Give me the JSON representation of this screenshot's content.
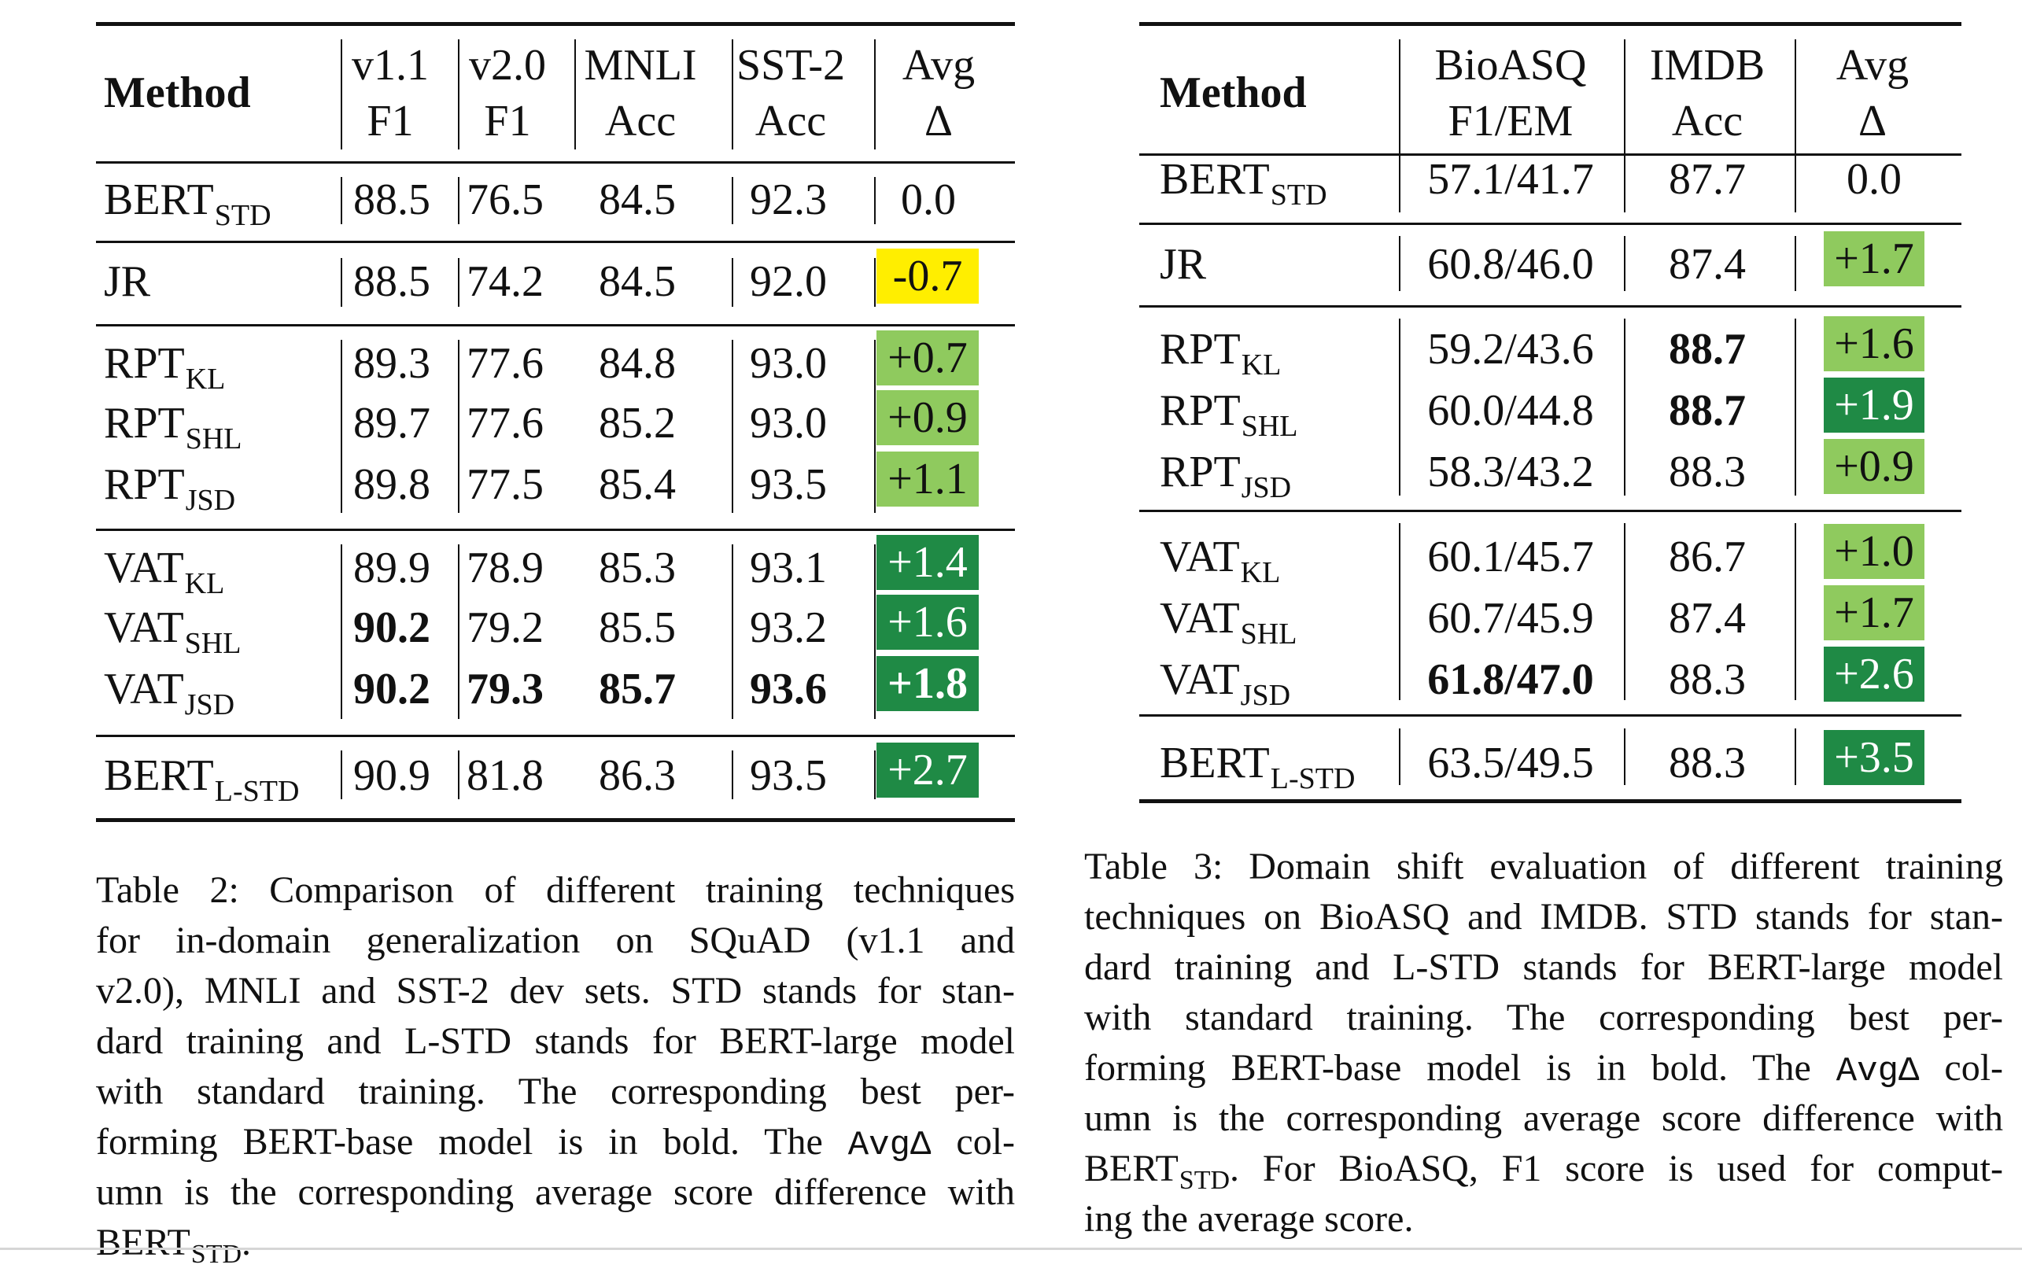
{
  "table2": {
    "header": {
      "method": "Method",
      "cols": [
        {
          "line1": "v1.1",
          "line2": "F1"
        },
        {
          "line1": "v2.0",
          "line2": "F1"
        },
        {
          "line1": "MNLI",
          "line2": "Acc"
        },
        {
          "line1": "SST-2",
          "line2": "Acc"
        },
        {
          "line1": "Avg",
          "line2": "Δ"
        }
      ]
    },
    "rows": [
      {
        "name": "BERT",
        "sub": "STD",
        "v11": "88.5",
        "v20": "76.5",
        "mnli": "84.5",
        "sst": "92.3",
        "avg": "0.0",
        "avg_color": ""
      },
      {
        "name": "JR",
        "sub": "",
        "v11": "88.5",
        "v20": "74.2",
        "mnli": "84.5",
        "sst": "92.0",
        "avg": "-0.7",
        "avg_color": "#ffee00"
      },
      {
        "name": "RPT",
        "sub": "KL",
        "v11": "89.3",
        "v20": "77.6",
        "mnli": "84.8",
        "sst": "93.0",
        "avg": "+0.7",
        "avg_color": "#8fca5e"
      },
      {
        "name": "RPT",
        "sub": "SHL",
        "v11": "89.7",
        "v20": "77.6",
        "mnli": "85.2",
        "sst": "93.0",
        "avg": "+0.9",
        "avg_color": "#8fca5e"
      },
      {
        "name": "RPT",
        "sub": "JSD",
        "v11": "89.8",
        "v20": "77.5",
        "mnli": "85.4",
        "sst": "93.5",
        "avg": "+1.1",
        "avg_color": "#8fca5e"
      },
      {
        "name": "VAT",
        "sub": "KL",
        "v11": "89.9",
        "v20": "78.9",
        "mnli": "85.3",
        "sst": "93.1",
        "avg": "+1.4",
        "avg_color": "#1f8a45"
      },
      {
        "name": "VAT",
        "sub": "SHL",
        "v11": "90.2",
        "v20": "79.2",
        "mnli": "85.5",
        "sst": "93.2",
        "avg": "+1.6",
        "avg_color": "#1f8a45"
      },
      {
        "name": "VAT",
        "sub": "JSD",
        "v11": "90.2",
        "v20": "79.3",
        "mnli": "85.7",
        "sst": "93.6",
        "avg": "+1.8",
        "avg_color": "#1f8a45"
      },
      {
        "name": "BERT",
        "sub": "L-STD",
        "v11": "90.9",
        "v20": "81.8",
        "mnli": "86.3",
        "sst": "93.5",
        "avg": "+2.7",
        "avg_color": "#1f8a45"
      }
    ],
    "caption_lines": [
      "Table 2: Comparison of different training techniques",
      "for in-domain generalization on SQuAD (v1.1 and",
      "v2.0), MNLI and SST-2 dev sets. STD stands for stan-",
      "dard training and L-STD stands for BERT-large model",
      "with standard training. The corresponding best per-",
      "forming BERT-base model is in bold. The",
      "umn is the corresponding average score difference with",
      "BERT"
    ],
    "caption_mono": "AvgΔ",
    "caption_after_mono": " col-",
    "caption_last_sub": "STD",
    "caption_last_tail": "."
  },
  "table3": {
    "header": {
      "method": "Method",
      "cols": [
        {
          "line1": "BioASQ",
          "line2": "F1/EM"
        },
        {
          "line1": "IMDB",
          "line2": "Acc"
        },
        {
          "line1": "Avg",
          "line2": "Δ"
        }
      ]
    },
    "rows": [
      {
        "name": "BERT",
        "sub": "STD",
        "bio": "57.1/41.7",
        "imdb": "87.7",
        "avg": "0.0",
        "avg_color": ""
      },
      {
        "name": "JR",
        "sub": "",
        "bio": "60.8/46.0",
        "imdb": "87.4",
        "avg": "+1.7",
        "avg_color": "#8fca5e"
      },
      {
        "name": "RPT",
        "sub": "KL",
        "bio": "59.2/43.6",
        "imdb": "88.7",
        "avg": "+1.6",
        "avg_color": "#8fca5e"
      },
      {
        "name": "RPT",
        "sub": "SHL",
        "bio": "60.0/44.8",
        "imdb": "88.7",
        "avg": "+1.9",
        "avg_color": "#1f8a45"
      },
      {
        "name": "RPT",
        "sub": "JSD",
        "bio": "58.3/43.2",
        "imdb": "88.3",
        "avg": "+0.9",
        "avg_color": "#8fca5e"
      },
      {
        "name": "VAT",
        "sub": "KL",
        "bio": "60.1/45.7",
        "imdb": "86.7",
        "avg": "+1.0",
        "avg_color": "#8fca5e"
      },
      {
        "name": "VAT",
        "sub": "SHL",
        "bio": "60.7/45.9",
        "imdb": "87.4",
        "avg": "+1.7",
        "avg_color": "#8fca5e"
      },
      {
        "name": "VAT",
        "sub": "JSD",
        "bio": "61.8/47.0",
        "imdb": "88.3",
        "avg": "+2.6",
        "avg_color": "#1f8a45"
      },
      {
        "name": "BERT",
        "sub": "L-STD",
        "bio": "63.5/49.5",
        "imdb": "88.3",
        "avg": "+3.5",
        "avg_color": "#1f8a45"
      }
    ],
    "caption_lines": [
      "Table 3: Domain shift evaluation of different training",
      "techniques on BioASQ and IMDB. STD stands for stan-",
      "dard training and L-STD stands for BERT-large model",
      "with standard training. The corresponding best per-",
      "forming BERT-base model is in bold. The",
      "umn is the corresponding average score difference with",
      "BERT",
      "ing the average score."
    ],
    "caption_mono": "AvgΔ",
    "caption_after_mono": " col-",
    "caption_sub": "STD",
    "caption_after_sub": ". For BioASQ, F1 score is used for comput-"
  }
}
